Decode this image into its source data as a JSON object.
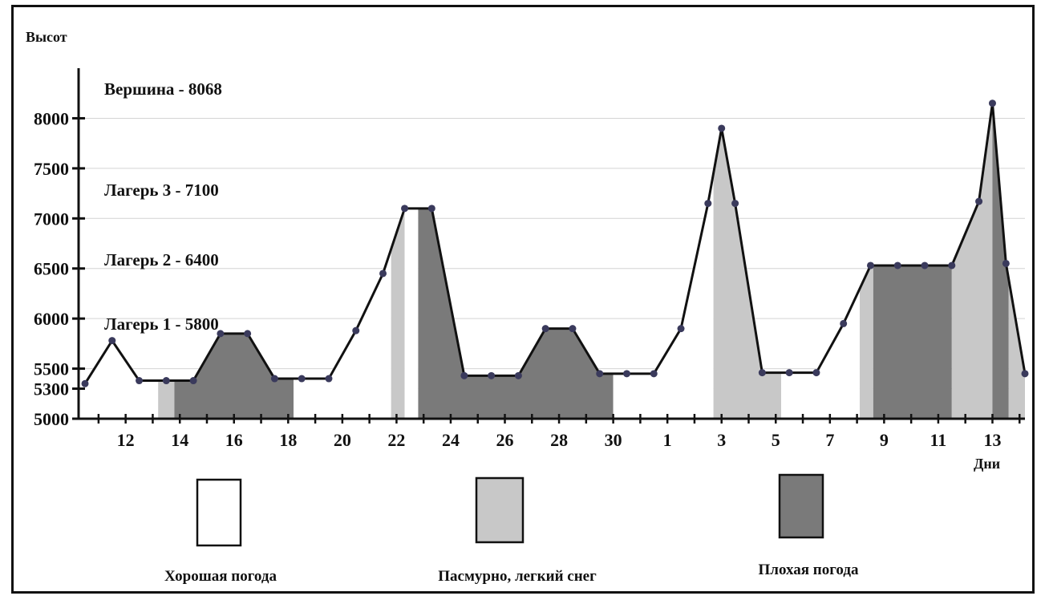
{
  "chart_data": {
    "type": "area",
    "title": "",
    "ylabel": "Высот",
    "xlabel": "Дни",
    "ylim": [
      5000,
      8300
    ],
    "y_ticks": [
      5000,
      5300,
      5500,
      6000,
      6500,
      7000,
      7500,
      8000
    ],
    "x_tick_labels": [
      "12",
      "14",
      "16",
      "18",
      "20",
      "22",
      "24",
      "26",
      "28",
      "30",
      "1",
      "3",
      "5",
      "7",
      "9",
      "11",
      "13"
    ],
    "x_tick_positions": [
      1.5,
      3.5,
      5.5,
      7.5,
      9.5,
      11.5,
      13.5,
      15.5,
      17.5,
      19.5,
      21.5,
      23.5,
      25.5,
      27.5,
      29.5,
      31.5,
      33.5
    ],
    "xlim": [
      0,
      34.7
    ],
    "points": [
      [
        0,
        5350
      ],
      [
        1,
        5780
      ],
      [
        2,
        5380
      ],
      [
        3,
        5380
      ],
      [
        4,
        5380
      ],
      [
        5,
        5850
      ],
      [
        6,
        5850
      ],
      [
        7,
        5400
      ],
      [
        8,
        5400
      ],
      [
        9,
        5400
      ],
      [
        10,
        5880
      ],
      [
        11,
        6450
      ],
      [
        11.8,
        7100
      ],
      [
        12.8,
        7100
      ],
      [
        14,
        5430
      ],
      [
        15,
        5430
      ],
      [
        16,
        5430
      ],
      [
        17,
        5900
      ],
      [
        18,
        5900
      ],
      [
        19,
        5450
      ],
      [
        20,
        5450
      ],
      [
        21,
        5450
      ],
      [
        22,
        5900
      ],
      [
        23,
        7150
      ],
      [
        23.5,
        7900
      ],
      [
        24,
        7150
      ],
      [
        25,
        5460
      ],
      [
        26,
        5460
      ],
      [
        27,
        5460
      ],
      [
        28,
        5950
      ],
      [
        29,
        6530
      ],
      [
        30,
        6530
      ],
      [
        31,
        6530
      ],
      [
        32,
        6530
      ],
      [
        33,
        7170
      ],
      [
        33.5,
        8150
      ],
      [
        34,
        6550
      ],
      [
        34.7,
        5450
      ]
    ],
    "weather_segments": [
      {
        "from": 0,
        "to": 2.7,
        "type": "good"
      },
      {
        "from": 2.7,
        "to": 3.3,
        "type": "overcast"
      },
      {
        "from": 3.3,
        "to": 7.7,
        "type": "bad"
      },
      {
        "from": 7.7,
        "to": 11.3,
        "type": "good"
      },
      {
        "from": 11.3,
        "to": 11.8,
        "type": "overcast"
      },
      {
        "from": 11.8,
        "to": 12.3,
        "type": "good"
      },
      {
        "from": 12.3,
        "to": 19.5,
        "type": "bad"
      },
      {
        "from": 19.5,
        "to": 23.2,
        "type": "good"
      },
      {
        "from": 23.2,
        "to": 25.7,
        "type": "overcast"
      },
      {
        "from": 25.7,
        "to": 28.6,
        "type": "good"
      },
      {
        "from": 28.6,
        "to": 29.1,
        "type": "overcast"
      },
      {
        "from": 29.1,
        "to": 32,
        "type": "bad"
      },
      {
        "from": 32,
        "to": 33.5,
        "type": "overcast"
      },
      {
        "from": 33.5,
        "to": 34.1,
        "type": "bad"
      },
      {
        "from": 34.1,
        "to": 34.7,
        "type": "overcast"
      }
    ],
    "annotations": [
      {
        "text": "Вершина - 8068",
        "y": 8068
      },
      {
        "text": "Лагерь 3 - 7100",
        "y": 7100
      },
      {
        "text": "Лагерь 2 - 6400",
        "y": 6400
      },
      {
        "text": "Лагерь 1 - 5800",
        "y": 5800
      }
    ],
    "grid": true,
    "legend": {
      "placement": "bottom",
      "entries": [
        {
          "label": "Хорошая погода",
          "type": "good"
        },
        {
          "label": "Пасмурно,  легкий снег",
          "type": "overcast"
        },
        {
          "label": "Плохая погода",
          "type": "bad"
        }
      ]
    },
    "colors": {
      "good": "#ffffff",
      "overcast": "#c8c8c8",
      "bad": "#7a7a7a",
      "line": "#111111",
      "marker": "#3a3a5c",
      "grid": "#d4d4d4"
    }
  }
}
